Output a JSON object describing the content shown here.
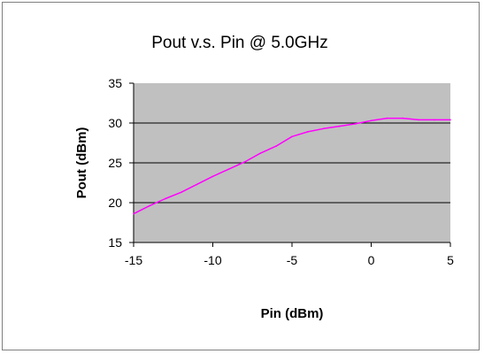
{
  "chart_data": {
    "type": "line",
    "title": "Pout v.s. Pin @ 5.0GHz",
    "xlabel": "Pin (dBm)",
    "ylabel": "Pout (dBm)",
    "xlim": [
      -15,
      5
    ],
    "ylim": [
      15,
      35
    ],
    "x_ticks": [
      -15,
      -10,
      -5,
      0,
      5
    ],
    "y_ticks": [
      15,
      20,
      25,
      30,
      35
    ],
    "grid": "horizontal",
    "plot_background": "#c0c0c0",
    "series": [
      {
        "color": "#ff00ff",
        "x": [
          -15,
          -14,
          -13,
          -12,
          -11,
          -10,
          -9,
          -8,
          -7,
          -6,
          -5,
          -4,
          -3,
          -2,
          -1,
          0,
          1,
          2,
          3,
          4,
          5
        ],
        "y": [
          18.6,
          19.6,
          20.5,
          21.3,
          22.3,
          23.3,
          24.2,
          25.1,
          26.2,
          27.1,
          28.3,
          28.9,
          29.3,
          29.6,
          29.9,
          30.3,
          30.6,
          30.6,
          30.4,
          30.4,
          30.4
        ]
      }
    ]
  }
}
